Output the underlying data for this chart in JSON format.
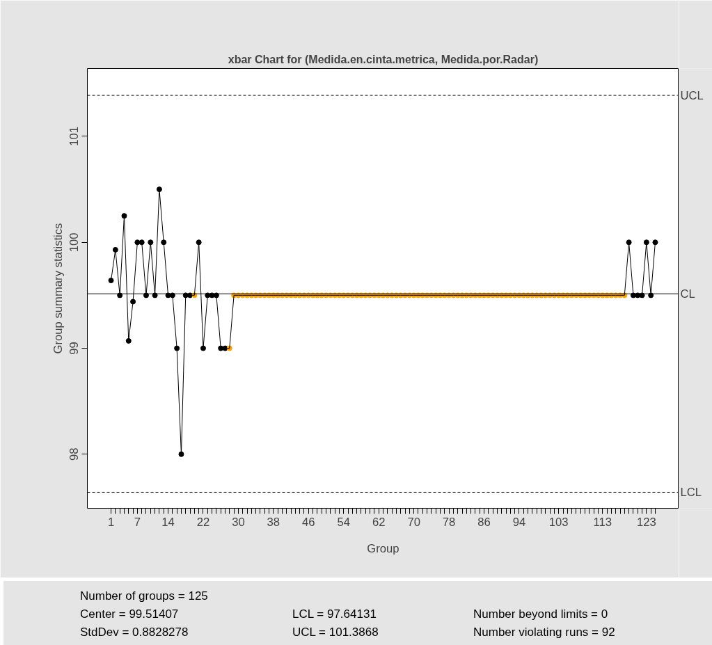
{
  "chart_data": {
    "type": "line",
    "title": "xbar Chart for (Medida.en.cinta.metrica, Medida.por.Radar)",
    "xlabel": "Group",
    "ylabel": "Group summary statistics",
    "x": [
      1,
      2,
      3,
      4,
      5,
      6,
      7,
      8,
      9,
      10,
      11,
      12,
      13,
      14,
      15,
      16,
      17,
      18,
      19,
      20,
      21,
      22,
      23,
      24,
      25,
      26,
      27,
      28,
      29,
      30,
      31,
      32,
      33,
      34,
      35,
      36,
      37,
      38,
      39,
      40,
      41,
      42,
      43,
      44,
      45,
      46,
      47,
      48,
      49,
      50,
      51,
      52,
      53,
      54,
      55,
      56,
      57,
      58,
      59,
      60,
      61,
      62,
      63,
      64,
      65,
      66,
      67,
      68,
      69,
      70,
      71,
      72,
      73,
      74,
      75,
      76,
      77,
      78,
      79,
      80,
      81,
      82,
      83,
      84,
      85,
      86,
      87,
      88,
      89,
      90,
      91,
      92,
      93,
      94,
      95,
      96,
      97,
      98,
      99,
      100,
      101,
      102,
      103,
      104,
      105,
      106,
      107,
      108,
      109,
      110,
      111,
      112,
      113,
      114,
      115,
      116,
      117,
      118,
      119,
      120,
      121,
      122,
      123,
      124,
      125
    ],
    "series": [
      {
        "color": "#000000",
        "marker": "circle",
        "values": [
          99.64,
          99.93,
          99.5,
          100.25,
          99.07,
          99.44,
          100,
          100,
          99.5,
          100,
          99.5,
          100.5,
          100,
          99.5,
          99.5,
          99,
          98,
          99.5,
          99.5,
          99.5,
          100,
          99,
          99.5,
          99.5,
          99.5,
          99,
          99,
          99,
          99.5,
          99.5,
          99.5,
          99.5,
          99.5,
          99.5,
          99.5,
          99.5,
          99.5,
          99.5,
          99.5,
          99.5,
          99.5,
          99.5,
          99.5,
          99.5,
          99.5,
          99.5,
          99.5,
          99.5,
          99.5,
          99.5,
          99.5,
          99.5,
          99.5,
          99.5,
          99.5,
          99.5,
          99.5,
          99.5,
          99.5,
          99.5,
          99.5,
          99.5,
          99.5,
          99.5,
          99.5,
          99.5,
          99.5,
          99.5,
          99.5,
          99.5,
          99.5,
          99.5,
          99.5,
          99.5,
          99.5,
          99.5,
          99.5,
          99.5,
          99.5,
          99.5,
          99.5,
          99.5,
          99.5,
          99.5,
          99.5,
          99.5,
          99.5,
          99.5,
          99.5,
          99.5,
          99.5,
          99.5,
          99.5,
          99.5,
          99.5,
          99.5,
          99.5,
          99.5,
          99.5,
          99.5,
          99.5,
          99.5,
          99.5,
          99.5,
          99.5,
          99.5,
          99.5,
          99.5,
          99.5,
          99.5,
          99.5,
          99.5,
          99.5,
          99.5,
          99.5,
          99.5,
          99.5,
          99.5,
          100,
          99.5,
          99.5,
          99.5,
          100,
          99.5,
          100
        ],
        "colors": [
          "#000000",
          "#000000",
          "#000000",
          "#000000",
          "#000000",
          "#000000",
          "#000000",
          "#000000",
          "#000000",
          "#000000",
          "#000000",
          "#000000",
          "#000000",
          "#000000",
          "#000000",
          "#000000",
          "#000000",
          "#000000",
          "#000000",
          "#ffa500",
          "#000000",
          "#000000",
          "#000000",
          "#000000",
          "#000000",
          "#000000",
          "#000000",
          "#ffa500",
          "#ffa500",
          "#ffa500",
          "#ffa500",
          "#ffa500",
          "#ffa500",
          "#ffa500",
          "#ffa500",
          "#ffa500",
          "#ffa500",
          "#ffa500",
          "#ffa500",
          "#ffa500",
          "#ffa500",
          "#ffa500",
          "#ffa500",
          "#ffa500",
          "#ffa500",
          "#ffa500",
          "#ffa500",
          "#ffa500",
          "#ffa500",
          "#ffa500",
          "#ffa500",
          "#ffa500",
          "#ffa500",
          "#ffa500",
          "#ffa500",
          "#ffa500",
          "#ffa500",
          "#ffa500",
          "#ffa500",
          "#ffa500",
          "#ffa500",
          "#ffa500",
          "#ffa500",
          "#ffa500",
          "#ffa500",
          "#ffa500",
          "#ffa500",
          "#ffa500",
          "#ffa500",
          "#ffa500",
          "#ffa500",
          "#ffa500",
          "#ffa500",
          "#ffa500",
          "#ffa500",
          "#ffa500",
          "#ffa500",
          "#ffa500",
          "#ffa500",
          "#ffa500",
          "#ffa500",
          "#ffa500",
          "#ffa500",
          "#ffa500",
          "#ffa500",
          "#ffa500",
          "#ffa500",
          "#ffa500",
          "#ffa500",
          "#ffa500",
          "#ffa500",
          "#ffa500",
          "#ffa500",
          "#ffa500",
          "#ffa500",
          "#ffa500",
          "#ffa500",
          "#ffa500",
          "#ffa500",
          "#ffa500",
          "#ffa500",
          "#ffa500",
          "#ffa500",
          "#ffa500",
          "#ffa500",
          "#ffa500",
          "#ffa500",
          "#ffa500",
          "#ffa500",
          "#ffa500",
          "#ffa500",
          "#ffa500",
          "#ffa500",
          "#ffa500",
          "#ffa500",
          "#ffa500",
          "#ffa500",
          "#ffa500",
          "#000000",
          "#000000",
          "#000000",
          "#000000",
          "#000000",
          "#000000",
          "#000000"
        ]
      }
    ],
    "xlim": [
      -4.4,
      130.4
    ],
    "ylim": [
      97.49,
      101.64
    ],
    "yticks": [
      98,
      99,
      100,
      101
    ],
    "xticks": [
      1,
      {
        "value": 2,
        "label": null
      },
      {
        "value": 3,
        "label": null
      },
      {
        "value": 4,
        "label": null
      },
      {
        "value": 5,
        "label": null
      },
      {
        "value": 6,
        "label": null
      },
      7,
      {
        "value": 8,
        "label": null
      },
      {
        "value": 9,
        "label": null
      },
      {
        "value": 10,
        "label": null
      },
      {
        "value": 11,
        "label": null
      },
      {
        "value": 12,
        "label": null
      },
      {
        "value": 13,
        "label": null
      },
      14,
      {
        "value": 15,
        "label": null
      },
      {
        "value": 16,
        "label": null
      },
      {
        "value": 17,
        "label": null
      },
      {
        "value": 18,
        "label": null
      },
      {
        "value": 19,
        "label": null
      },
      {
        "value": 20,
        "label": null
      },
      {
        "value": 21,
        "label": null
      },
      22,
      {
        "value": 23,
        "label": null
      },
      {
        "value": 24,
        "label": null
      },
      {
        "value": 25,
        "label": null
      },
      {
        "value": 26,
        "label": null
      },
      {
        "value": 27,
        "label": null
      },
      {
        "value": 28,
        "label": null
      },
      {
        "value": 29,
        "label": null
      },
      30,
      {
        "value": 31,
        "label": null
      },
      {
        "value": 32,
        "label": null
      },
      {
        "value": 33,
        "label": null
      },
      {
        "value": 34,
        "label": null
      },
      {
        "value": 35,
        "label": null
      },
      {
        "value": 36,
        "label": null
      },
      {
        "value": 37,
        "label": null
      },
      38,
      {
        "value": 39,
        "label": null
      },
      {
        "value": 40,
        "label": null
      },
      {
        "value": 41,
        "label": null
      },
      {
        "value": 42,
        "label": null
      },
      {
        "value": 43,
        "label": null
      },
      {
        "value": 44,
        "label": null
      },
      {
        "value": 45,
        "label": null
      },
      46,
      {
        "value": 47,
        "label": null
      },
      {
        "value": 48,
        "label": null
      },
      {
        "value": 49,
        "label": null
      },
      {
        "value": 50,
        "label": null
      },
      {
        "value": 51,
        "label": null
      },
      {
        "value": 52,
        "label": null
      },
      {
        "value": 53,
        "label": null
      },
      54,
      {
        "value": 55,
        "label": null
      },
      {
        "value": 56,
        "label": null
      },
      {
        "value": 57,
        "label": null
      },
      {
        "value": 58,
        "label": null
      },
      {
        "value": 59,
        "label": null
      },
      {
        "value": 60,
        "label": null
      },
      {
        "value": 61,
        "label": null
      },
      62,
      {
        "value": 63,
        "label": null
      },
      {
        "value": 64,
        "label": null
      },
      {
        "value": 65,
        "label": null
      },
      {
        "value": 66,
        "label": null
      },
      {
        "value": 67,
        "label": null
      },
      {
        "value": 68,
        "label": null
      },
      {
        "value": 69,
        "label": null
      },
      70,
      {
        "value": 71,
        "label": null
      },
      {
        "value": 72,
        "label": null
      },
      {
        "value": 73,
        "label": null
      },
      {
        "value": 74,
        "label": null
      },
      {
        "value": 75,
        "label": null
      },
      {
        "value": 76,
        "label": null
      },
      {
        "value": 77,
        "label": null
      },
      78,
      {
        "value": 79,
        "label": null
      },
      {
        "value": 80,
        "label": null
      },
      {
        "value": 81,
        "label": null
      },
      {
        "value": 82,
        "label": null
      },
      {
        "value": 83,
        "label": null
      },
      {
        "value": 84,
        "label": null
      },
      {
        "value": 85,
        "label": null
      },
      86,
      {
        "value": 87,
        "label": null
      },
      {
        "value": 88,
        "label": null
      },
      {
        "value": 89,
        "label": null
      },
      {
        "value": 90,
        "label": null
      },
      {
        "value": 91,
        "label": null
      },
      {
        "value": 92,
        "label": null
      },
      {
        "value": 93,
        "label": null
      },
      94,
      {
        "value": 95,
        "label": null
      },
      {
        "value": 96,
        "label": null
      },
      {
        "value": 97,
        "label": null
      },
      {
        "value": 98,
        "label": null
      },
      {
        "value": 99,
        "label": null
      },
      {
        "value": 100,
        "label": null
      },
      {
        "value": 101,
        "label": null
      },
      {
        "value": 102,
        "label": null
      },
      103,
      {
        "value": 104,
        "label": null
      },
      {
        "value": 105,
        "label": null
      },
      {
        "value": 106,
        "label": null
      },
      {
        "value": 107,
        "label": null
      },
      {
        "value": 108,
        "label": null
      },
      {
        "value": 109,
        "label": null
      },
      {
        "value": 110,
        "label": null
      },
      {
        "value": 111,
        "label": null
      },
      {
        "value": 112,
        "label": null
      },
      113,
      {
        "value": 114,
        "label": null
      },
      {
        "value": 115,
        "label": null
      },
      {
        "value": 116,
        "label": null
      },
      {
        "value": 117,
        "label": null
      },
      {
        "value": 118,
        "label": null
      },
      {
        "value": 119,
        "label": null
      },
      {
        "value": 120,
        "label": null
      },
      {
        "value": 121,
        "label": null
      },
      {
        "value": 122,
        "label": null
      },
      123,
      {
        "value": 124,
        "label": null
      },
      {
        "value": 125,
        "label": null
      }
    ],
    "ref_lines": [
      {
        "axis": "y",
        "value": 101.3868,
        "label": "UCL",
        "line_style": "dashed"
      },
      {
        "axis": "y",
        "value": 99.51407,
        "label": "CL",
        "line_style": "solid"
      },
      {
        "axis": "y",
        "value": 97.64131,
        "label": "LCL",
        "line_style": "dashed"
      }
    ],
    "annotations": [
      "Number of groups = 125",
      "Center = 99.51407",
      "StdDev = 0.8828278",
      "LCL = 97.64131",
      "UCL = 101.3868",
      "Number beyond limits = 0",
      "Number violating runs = 92"
    ],
    "grid": false,
    "line_style": "solid"
  }
}
